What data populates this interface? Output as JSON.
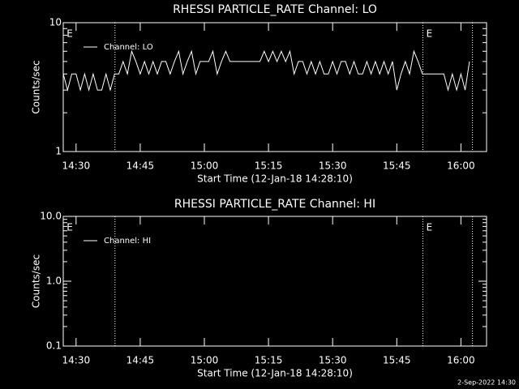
{
  "chart_data": [
    {
      "type": "line",
      "title": "RHESSI PARTICLE_RATE Channel: LO",
      "xlabel": "Start Time (12-Jan-18 14:28:10)",
      "ylabel": "Counts/sec",
      "log_y": true,
      "ylim": [
        1,
        10
      ],
      "yticks": [
        1,
        10
      ],
      "yminor_ticks": [
        2,
        3,
        4,
        5,
        6,
        7,
        8,
        9
      ],
      "xlim": [
        867,
        966
      ],
      "xticks": [
        {
          "value": 870,
          "label": "14:30"
        },
        {
          "value": 885,
          "label": "14:45"
        },
        {
          "value": 900,
          "label": "15:00"
        },
        {
          "value": 915,
          "label": "15:15"
        },
        {
          "value": 930,
          "label": "15:30"
        },
        {
          "value": 945,
          "label": "15:45"
        },
        {
          "value": 960,
          "label": "16:00"
        }
      ],
      "vlines": [
        879.1,
        951.1,
        962.7
      ],
      "annotations": [
        {
          "text": "E",
          "x": 867.8
        },
        {
          "text": "E",
          "x": 951.9
        }
      ],
      "legend": "upper left",
      "x": [
        867,
        868,
        869,
        870,
        871,
        872,
        873,
        874,
        875,
        876,
        877,
        878,
        879,
        880,
        881,
        882,
        883,
        884,
        885,
        886,
        887,
        888,
        889,
        890,
        891,
        892,
        893,
        894,
        895,
        896,
        897,
        898,
        899,
        900,
        901,
        902,
        903,
        904,
        905,
        906,
        907,
        908,
        909,
        910,
        911,
        912,
        913,
        914,
        915,
        916,
        917,
        918,
        919,
        920,
        921,
        922,
        923,
        924,
        925,
        926,
        927,
        928,
        929,
        930,
        931,
        932,
        933,
        934,
        935,
        936,
        937,
        938,
        939,
        940,
        941,
        942,
        943,
        944,
        945,
        946,
        947,
        948,
        949,
        950,
        951,
        952,
        953,
        954,
        955,
        956,
        957,
        958,
        959,
        960,
        961,
        962
      ],
      "series": [
        {
          "name": "Channel: LO",
          "color": "#ffffff",
          "values": [
            4,
            3,
            4,
            4,
            3,
            4,
            3,
            4,
            3,
            3,
            4,
            3,
            4,
            4,
            5,
            4,
            6,
            5,
            4,
            5,
            4,
            5,
            4,
            5,
            5,
            4,
            5,
            6,
            4,
            5,
            6,
            4,
            5,
            5,
            5,
            6,
            4,
            5,
            6,
            5,
            5,
            5,
            5,
            5,
            5,
            5,
            5,
            6,
            5,
            6,
            5,
            6,
            5,
            6,
            4,
            5,
            5,
            4,
            5,
            4,
            5,
            4,
            4,
            5,
            4,
            5,
            5,
            4,
            5,
            4,
            4,
            5,
            4,
            5,
            4,
            5,
            4,
            5,
            3,
            4,
            5,
            4,
            6,
            5,
            4,
            4,
            4,
            4,
            4,
            4,
            3,
            4,
            3,
            4,
            3,
            5
          ]
        }
      ]
    },
    {
      "type": "line",
      "title": "RHESSI PARTICLE_RATE Channel: HI",
      "xlabel": "Start Time (12-Jan-18 14:28:10)",
      "ylabel": "Counts/sec",
      "log_y": true,
      "ylim": [
        0.1,
        10
      ],
      "yticks": [
        0.1,
        {
          "value": 1,
          "label": "1.0"
        },
        {
          "value": 10,
          "label": "10.0"
        }
      ],
      "yminor_ticks": [
        0.2,
        0.3,
        0.4,
        0.5,
        0.6,
        0.7,
        0.8,
        0.9,
        2,
        3,
        4,
        5,
        6,
        7,
        8,
        9
      ],
      "xlim": [
        867,
        966
      ],
      "xticks": [
        {
          "value": 870,
          "label": "14:30"
        },
        {
          "value": 885,
          "label": "14:45"
        },
        {
          "value": 900,
          "label": "15:00"
        },
        {
          "value": 915,
          "label": "15:15"
        },
        {
          "value": 930,
          "label": "15:30"
        },
        {
          "value": 945,
          "label": "15:45"
        },
        {
          "value": 960,
          "label": "16:00"
        }
      ],
      "vlines": [
        879.1,
        951.1,
        962.7
      ],
      "annotations": [
        {
          "text": "E",
          "x": 867.8
        },
        {
          "text": "E",
          "x": 951.9
        }
      ],
      "legend": "upper left",
      "x": [],
      "series": [
        {
          "name": "Channel: HI",
          "color": "#ffffff",
          "values": []
        }
      ]
    }
  ],
  "footer": "2-Sep-2022 14:30"
}
